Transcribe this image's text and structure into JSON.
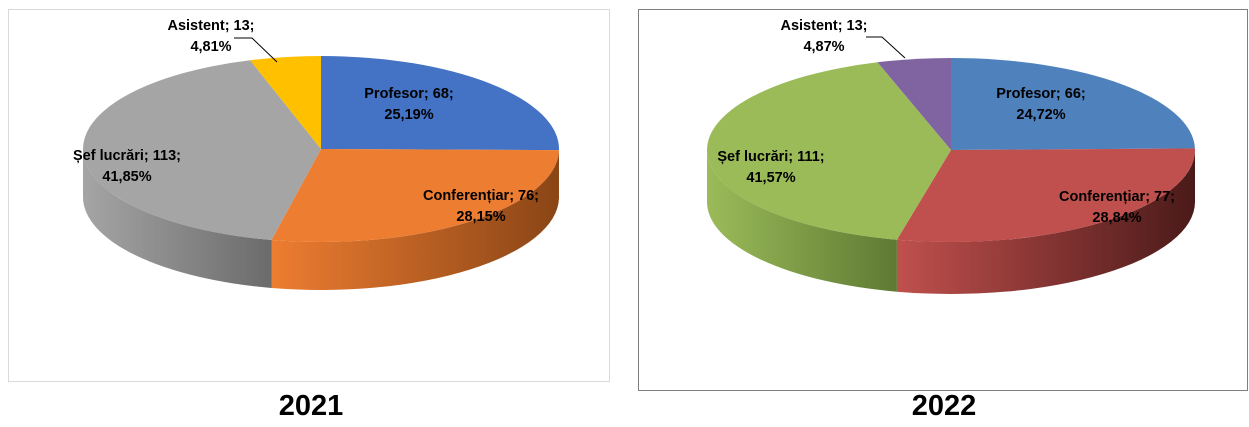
{
  "chart_data": [
    {
      "type": "pie",
      "title": "",
      "caption": "2021",
      "slices": [
        {
          "category": "Profesor",
          "value": 68,
          "percent": "25,19%",
          "color": "#4472c4",
          "side": "#2f4f88"
        },
        {
          "category": "Conferențiar",
          "value": 76,
          "percent": "28,15%",
          "color": "#ed7d31",
          "side": "#8a4516"
        },
        {
          "category": "Șef lucrări",
          "value": 113,
          "percent": "41,85%",
          "color": "#a5a5a5",
          "side": "#6b6b6b"
        },
        {
          "category": "Asistent",
          "value": 13,
          "percent": "4,81%",
          "color": "#ffc000",
          "side": "#a87e00"
        }
      ],
      "labels": [
        {
          "line1": "Profesor; 68;",
          "line2": "25,19%"
        },
        {
          "line1": "Conferențiar; 76;",
          "line2": "28,15%"
        },
        {
          "line1": "Șef lucrări; 113;",
          "line2": "41,85%"
        },
        {
          "line1": "Asistent; 13;",
          "line2": "4,81%"
        }
      ]
    },
    {
      "type": "pie",
      "title": "",
      "caption": "2022",
      "slices": [
        {
          "category": "Profesor",
          "value": 66,
          "percent": "24,72%",
          "color": "#4f81bd",
          "side": "#2e4d73"
        },
        {
          "category": "Conferențiar",
          "value": 77,
          "percent": "28,84%",
          "color": "#c0504d",
          "side": "#4a1a19"
        },
        {
          "category": "Șef lucrări",
          "value": 111,
          "percent": "41,57%",
          "color": "#9bbb59",
          "side": "#5e7a33"
        },
        {
          "category": "Asistent",
          "value": 13,
          "percent": "4,87%",
          "color": "#8064a2",
          "side": "#4d3a66"
        }
      ],
      "labels": [
        {
          "line1": "Profesor; 66;",
          "line2": "24,72%"
        },
        {
          "line1": "Conferențiar; 77;",
          "line2": "28,84%"
        },
        {
          "line1": "Șef lucrări; 111;",
          "line2": "41,57%"
        },
        {
          "line1": "Asistent; 13;",
          "line2": "4,87%"
        }
      ]
    }
  ]
}
